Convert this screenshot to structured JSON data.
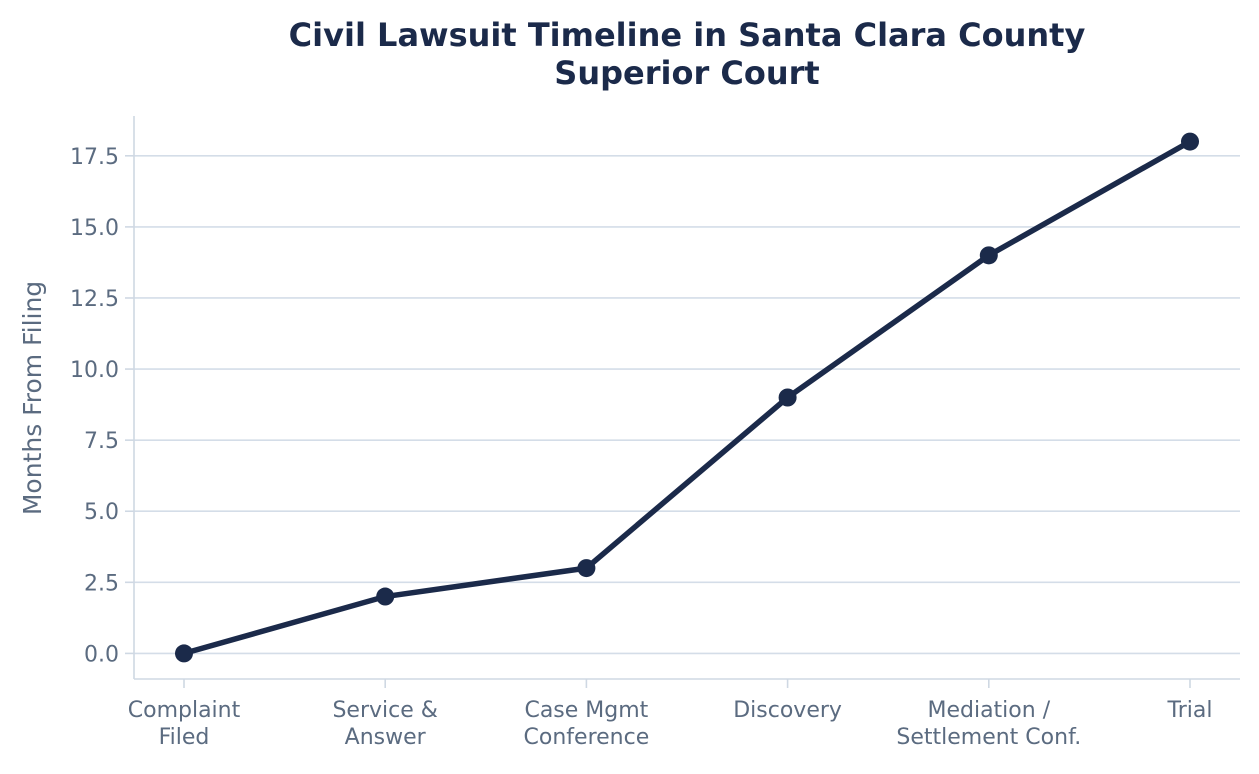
{
  "chart_data": {
    "type": "line",
    "title": [
      "Civil Lawsuit Timeline in Santa Clara County",
      "Superior Court"
    ],
    "xlabel": "",
    "ylabel": "Months From Filing",
    "categories": [
      [
        "Complaint",
        "Filed"
      ],
      [
        "Service &",
        "Answer"
      ],
      [
        "Case Mgmt",
        "Conference"
      ],
      [
        "Discovery"
      ],
      [
        "Mediation /",
        "Settlement Conf."
      ],
      [
        "Trial"
      ]
    ],
    "values": [
      0,
      2,
      3,
      9,
      14,
      18
    ],
    "ylim": [
      -0.9,
      18.9
    ],
    "yticks": [
      0,
      2.5,
      5,
      7.5,
      10,
      12.5,
      15,
      17.5
    ],
    "ytick_labels": [
      "0.0",
      "2.5",
      "5.0",
      "7.5",
      "10.0",
      "12.5",
      "15.0",
      "17.5"
    ],
    "grid": "y",
    "legend": "none",
    "colors": {
      "line": "#1b2a4a",
      "marker": "#1b2a4a",
      "grid": "#d4dde8",
      "axis": "#cfd8e3",
      "tick_text": "#5b6b80",
      "title": "#1b2a4a"
    }
  }
}
